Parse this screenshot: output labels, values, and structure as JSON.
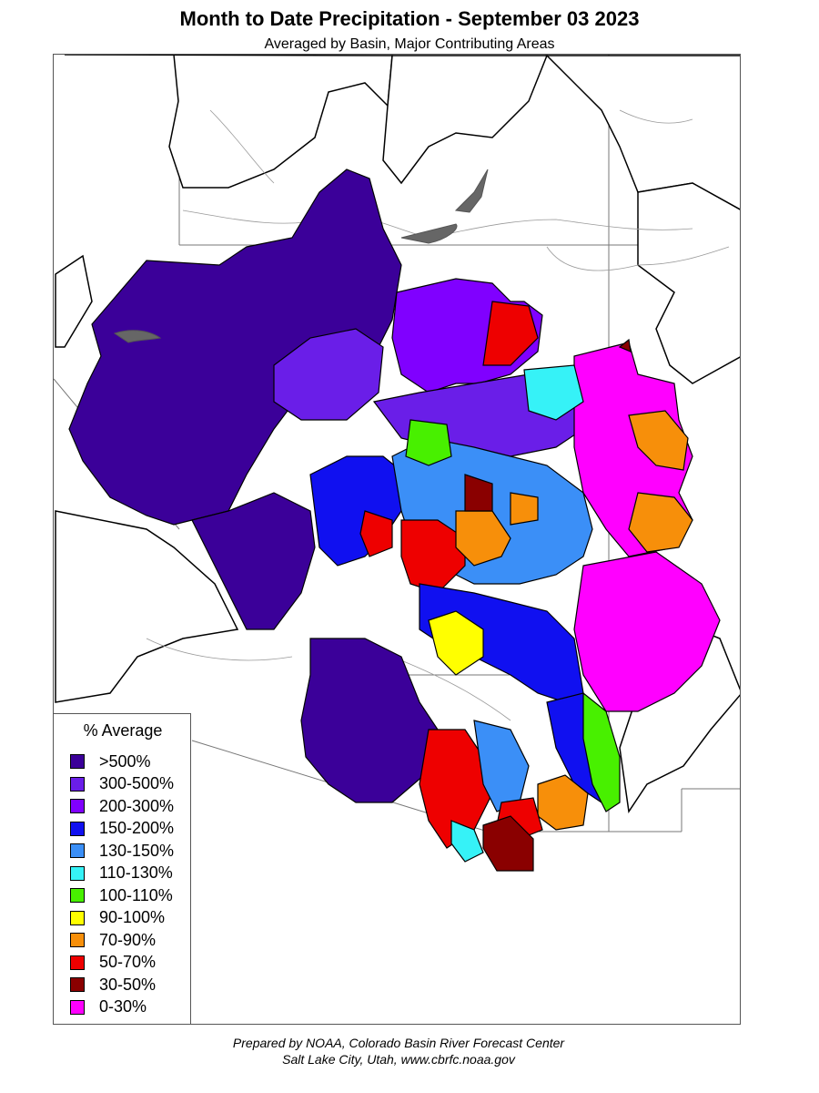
{
  "title": "Month to Date Precipitation - September 03 2023",
  "subtitle": "Averaged by Basin, Major Contributing Areas",
  "legend": {
    "title": "% Average",
    "items": [
      {
        "label": ">500%",
        "color": "#3b0099"
      },
      {
        "label": "300-500%",
        "color": "#6a1ee8"
      },
      {
        "label": "200-300%",
        "color": "#8000ff"
      },
      {
        "label": "150-200%",
        "color": "#1010f0"
      },
      {
        "label": "130-150%",
        "color": "#3b8ff7"
      },
      {
        "label": "110-130%",
        "color": "#36f2f7"
      },
      {
        "label": "100-110%",
        "color": "#48f000"
      },
      {
        "label": "90-100%",
        "color": "#ffff00"
      },
      {
        "label": "70-90%",
        "color": "#f78f0a"
      },
      {
        "label": "50-70%",
        "color": "#ee0000"
      },
      {
        "label": "30-50%",
        "color": "#8a0000"
      },
      {
        "label": "0-30%",
        "color": "#ff00ff"
      }
    ]
  },
  "footer": {
    "line1": "Prepared by NOAA, Colorado Basin River Forecast Center",
    "line2": "Salt Lake City, Utah, www.cbrfc.noaa.gov"
  }
}
